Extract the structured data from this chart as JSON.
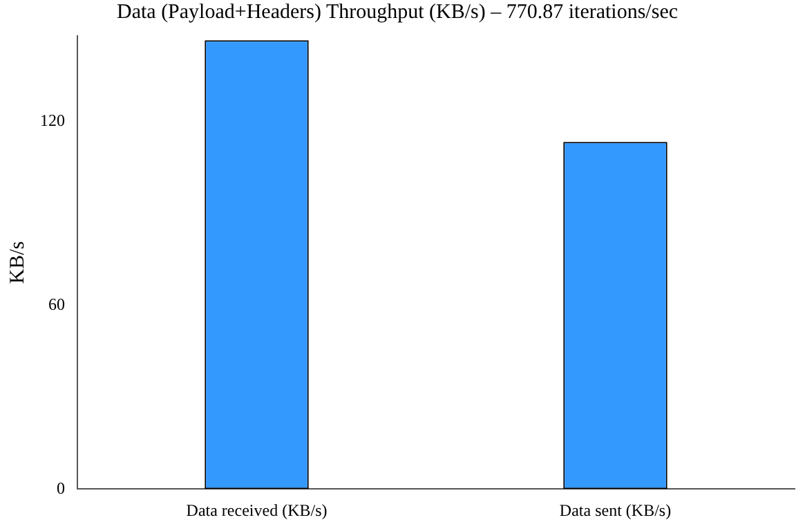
{
  "chart_data": {
    "type": "bar",
    "title": "Data (Payload+Headers) Throughput (KB/s) – 770.87 iterations/sec",
    "ylabel": "KB/s",
    "categories": [
      "Data received (KB/s)",
      "Data sent (KB/s)"
    ],
    "values": [
      146.6,
      113.4
    ],
    "color": "#3399ff",
    "ylim": [
      0,
      148
    ],
    "yticks": [
      0,
      60,
      120
    ],
    "grid": false,
    "legend": false
  }
}
